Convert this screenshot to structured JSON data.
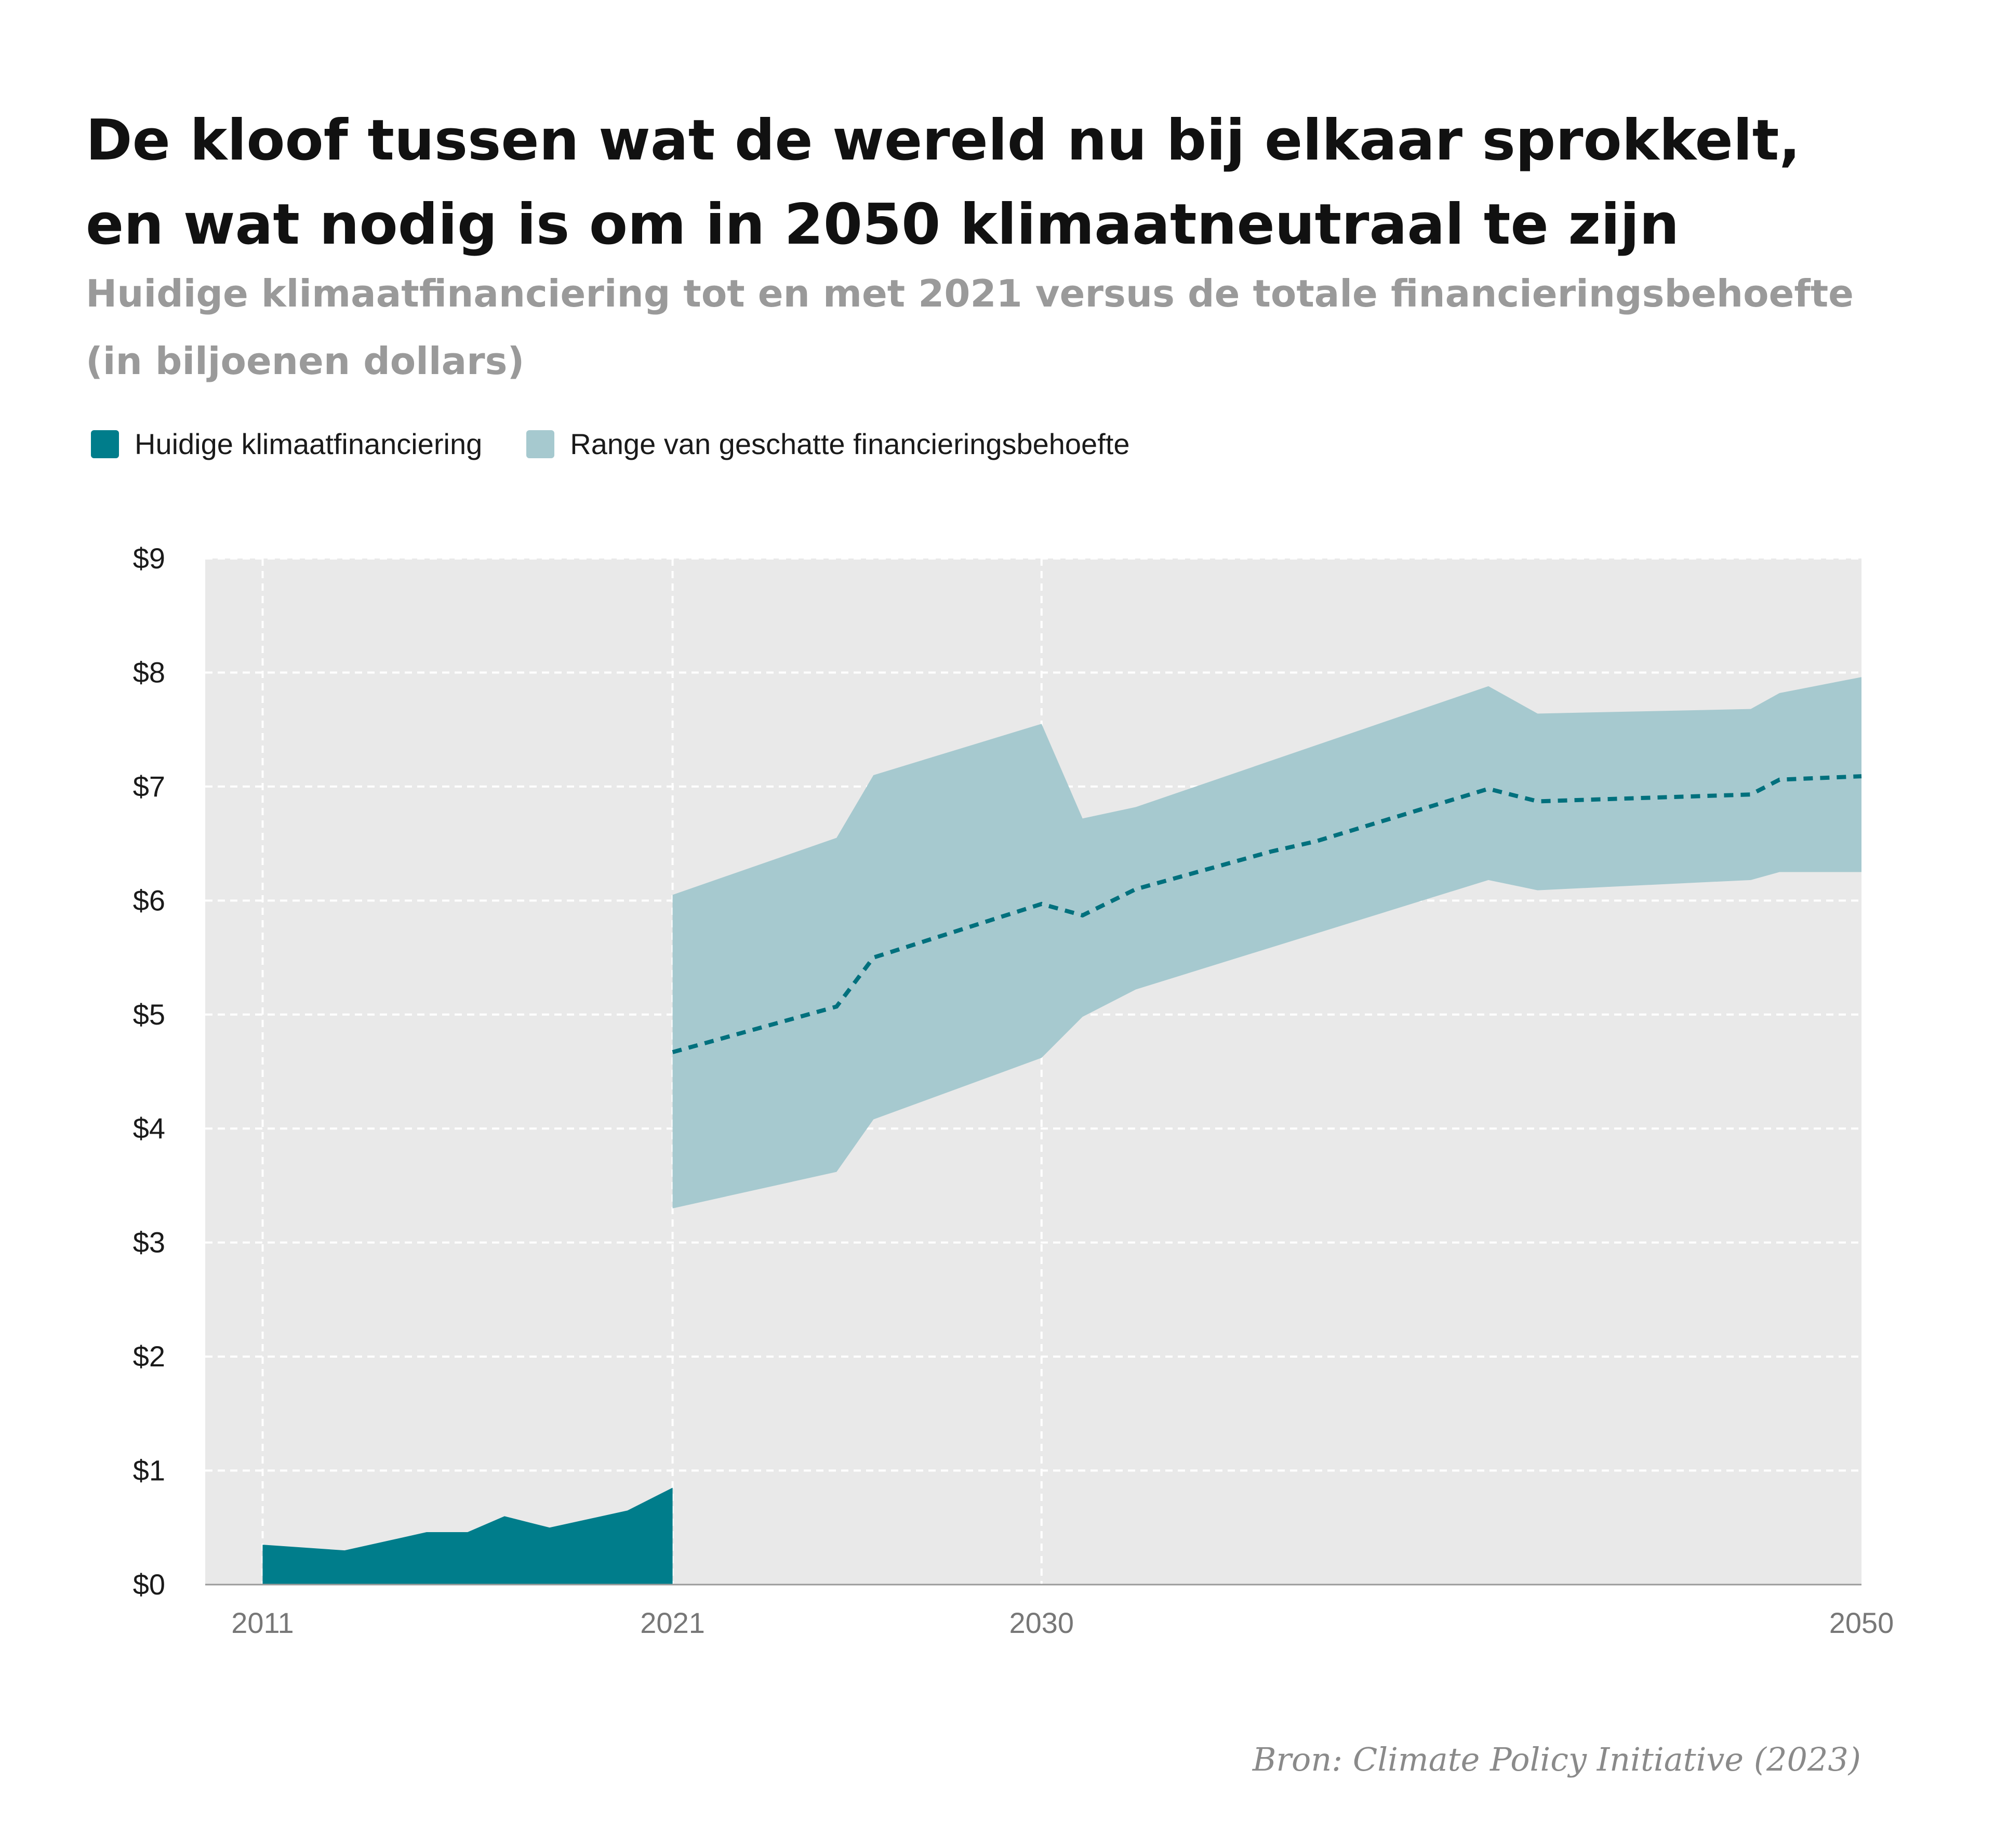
{
  "title_lines": [
    "De kloof tussen wat de wereld nu bij elkaar sprokkelt,",
    "en wat nodig is om in 2050 klimaatneutraal te zijn"
  ],
  "subtitle_lines": [
    "Huidige klimaatfinanciering tot en met 2021 versus de totale financieringsbehoefte",
    "(in biljoenen dollars)"
  ],
  "legend": [
    {
      "label": "Huidige klimaatfinanciering",
      "color": "#007d8b"
    },
    {
      "label": "Range van geschatte financieringsbehoefte",
      "color": "#a6c9cf"
    }
  ],
  "source": "Bron: Climate Policy Initiative (2023)",
  "colors": {
    "plot_background": "#e9e9e9",
    "current_finance": "#007d8b",
    "range_band": "#a6c9cf",
    "median_line": "#00707d",
    "grid": "#ffffff"
  },
  "chart_data": {
    "type": "area",
    "title": "De kloof tussen wat de wereld nu bij elkaar sprokkelt, en wat nodig is om in 2050 klimaatneutraal te zijn",
    "subtitle": "Huidige klimaatfinanciering tot en met 2021 versus de totale financieringsbehoefte (in biljoenen dollars)",
    "xlim": [
      2009.6,
      2050
    ],
    "ylim": [
      0,
      9
    ],
    "x_ticks": [
      2011,
      2021,
      2030,
      2050
    ],
    "y_ticks": [
      0,
      1,
      2,
      3,
      4,
      5,
      6,
      7,
      8,
      9
    ],
    "y_tick_labels": [
      "$0",
      "$1",
      "$2",
      "$3",
      "$4",
      "$5",
      "$6",
      "$7",
      "$8",
      "$9"
    ],
    "grid": true,
    "legend_position": "top-left",
    "series": [
      {
        "name": "Huidige klimaatfinanciering",
        "kind": "area",
        "x": [
          2011,
          2013,
          2015,
          2016,
          2016.9,
          2018,
          2019.9,
          2021
        ],
        "values": [
          0.35,
          0.3,
          0.46,
          0.46,
          0.6,
          0.5,
          0.65,
          0.85
        ]
      },
      {
        "name": "Range van geschatte financieringsbehoefte",
        "kind": "band",
        "x": [
          2021,
          2025,
          2025.9,
          2030,
          2031,
          2032.3,
          2040.9,
          2042.1,
          2047.3,
          2048,
          2050
        ],
        "lower": [
          3.3,
          3.62,
          4.08,
          4.62,
          4.98,
          5.22,
          6.18,
          6.09,
          6.18,
          6.25,
          6.25
        ],
        "upper": [
          6.05,
          6.55,
          7.1,
          7.55,
          6.72,
          6.82,
          7.88,
          7.64,
          7.68,
          7.82,
          7.96
        ]
      },
      {
        "kind": "line",
        "style": "dashed",
        "x": [
          2021,
          2025,
          2025.9,
          2030,
          2031,
          2032.3,
          2035.6,
          2036.7,
          2040.9,
          2042.1,
          2047.3,
          2048,
          2050
        ],
        "values": [
          4.67,
          5.07,
          5.5,
          5.97,
          5.87,
          6.1,
          6.43,
          6.52,
          6.98,
          6.87,
          6.93,
          7.06,
          7.09
        ]
      }
    ]
  }
}
